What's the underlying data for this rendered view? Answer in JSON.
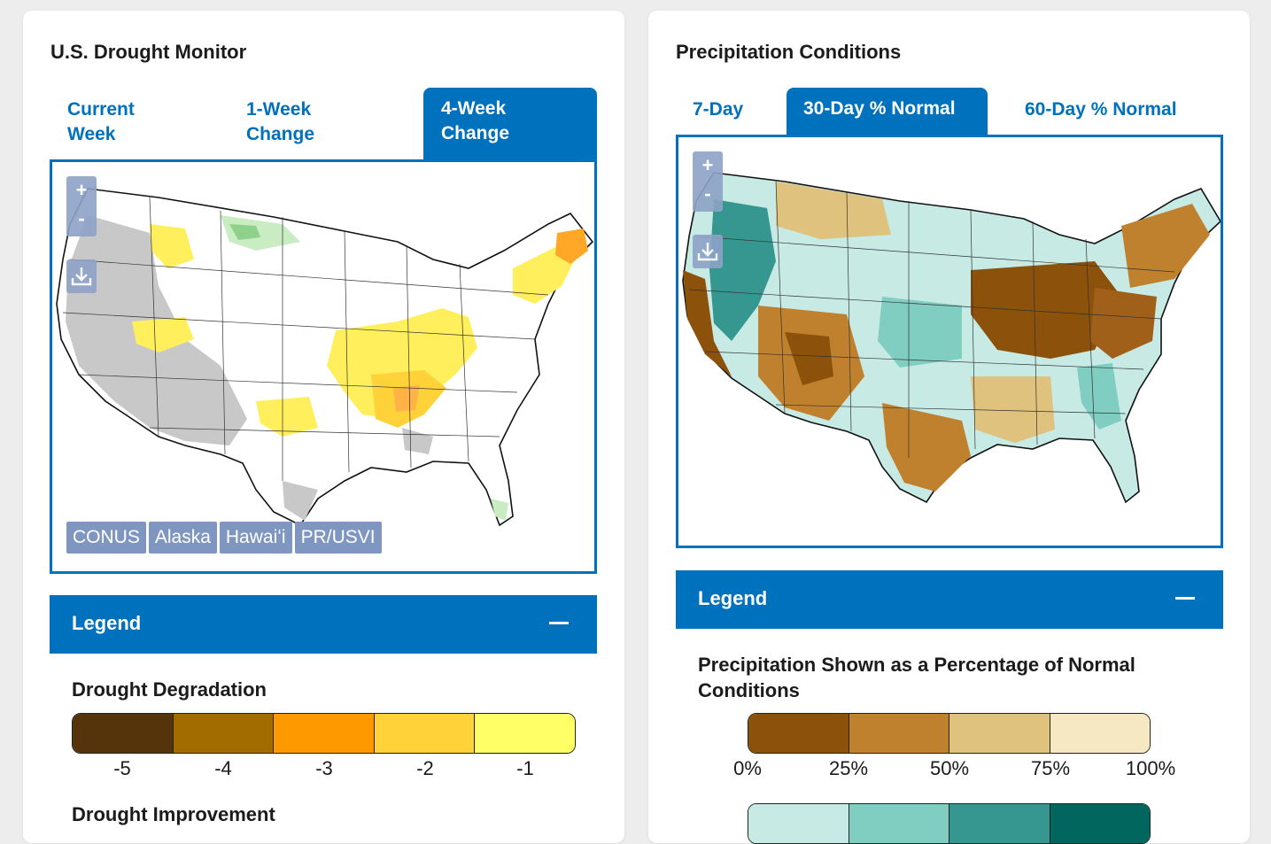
{
  "drought_panel": {
    "title": "U.S. Drought Monitor",
    "tabs": [
      {
        "label_line1": "Current",
        "label_line2": "Week",
        "active": false
      },
      {
        "label_line1": "1-Week",
        "label_line2": "Change",
        "active": false
      },
      {
        "label_line1": "4-Week",
        "label_line2": "Change",
        "active": true
      }
    ],
    "map_controls": {
      "zoom_in": "+",
      "zoom_out": "-",
      "download_icon": "download-icon"
    },
    "regions": [
      "CONUS",
      "Alaska",
      "Hawaiʻi",
      "PR/USVI"
    ],
    "legend": {
      "title": "Legend",
      "degradation_heading": "Drought Degradation",
      "degradation_classes": [
        {
          "label": "-5",
          "color": "#55330b"
        },
        {
          "label": "-4",
          "color": "#a36c00"
        },
        {
          "label": "-3",
          "color": "#ff9900"
        },
        {
          "label": "-2",
          "color": "#ffd23a"
        },
        {
          "label": "-1",
          "color": "#ffff66"
        }
      ],
      "improvement_heading": "Drought Improvement"
    }
  },
  "precip_panel": {
    "title": "Precipitation Conditions",
    "tabs": [
      {
        "label": "7-Day",
        "active": false
      },
      {
        "label": "30-Day % Normal",
        "active": true
      },
      {
        "label": "60-Day % Normal",
        "active": false
      }
    ],
    "map_controls": {
      "zoom_in": "+",
      "zoom_out": "-",
      "download_icon": "download-icon"
    },
    "legend": {
      "title": "Legend",
      "heading": "Precipitation Shown as a Percentage of Normal Conditions",
      "below_normal_colors": [
        "#8c510a",
        "#bf812d",
        "#dfc27d",
        "#f6e8c3"
      ],
      "tick_labels": [
        "0%",
        "25%",
        "50%",
        "75%",
        "100%"
      ],
      "above_normal_colors": [
        "#c7eae5",
        "#80cdc1",
        "#35978f",
        "#01665e"
      ]
    }
  }
}
